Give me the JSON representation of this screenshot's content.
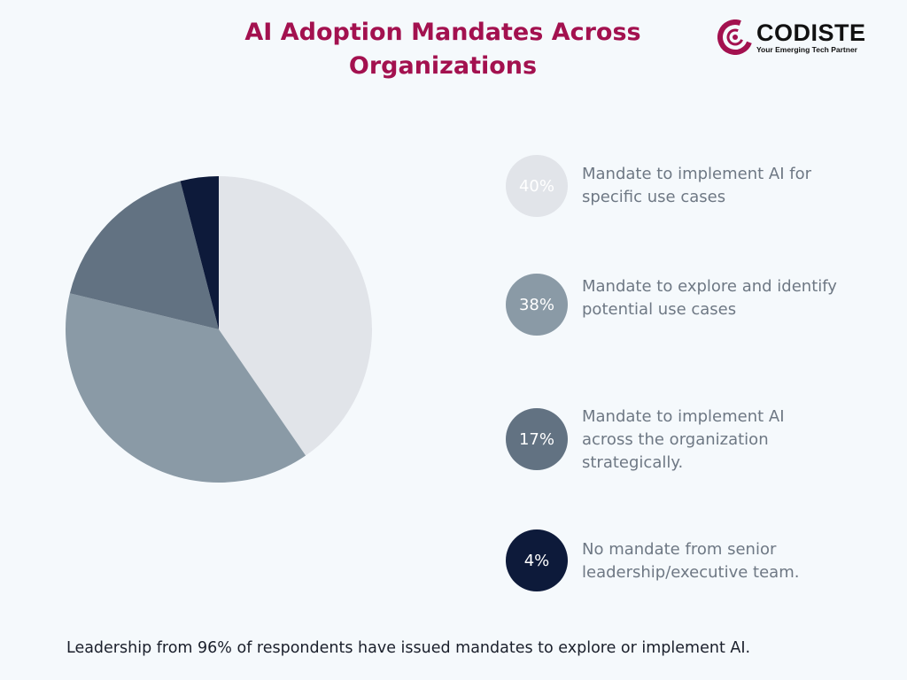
{
  "title": "AI Adoption Mandates Across Organizations",
  "logo": {
    "name": "CODISTE",
    "tagline": "Your Emerging Tech Partner",
    "color": "#a3114f"
  },
  "chart_data": {
    "type": "pie",
    "start": "top",
    "direction": "clockwise",
    "slices": [
      {
        "label": "Mandate to implement AI for specific use cases",
        "value": 40,
        "display": "40%",
        "color": "#e1e4e9"
      },
      {
        "label": "Mandate to explore and identify potential use cases",
        "value": 38,
        "display": "38%",
        "color": "#8a9aa6"
      },
      {
        "label": "Mandate to implement AI across the organization strategically.",
        "value": 17,
        "display": "17%",
        "color": "#627282"
      },
      {
        "label": "No mandate from senior leadership/executive team.",
        "value": 4,
        "display": "4%",
        "color": "#0d1a3a"
      }
    ],
    "legend_position": "right"
  },
  "footer": "Leadership from 96% of respondents have issued mandates to explore or implement AI."
}
